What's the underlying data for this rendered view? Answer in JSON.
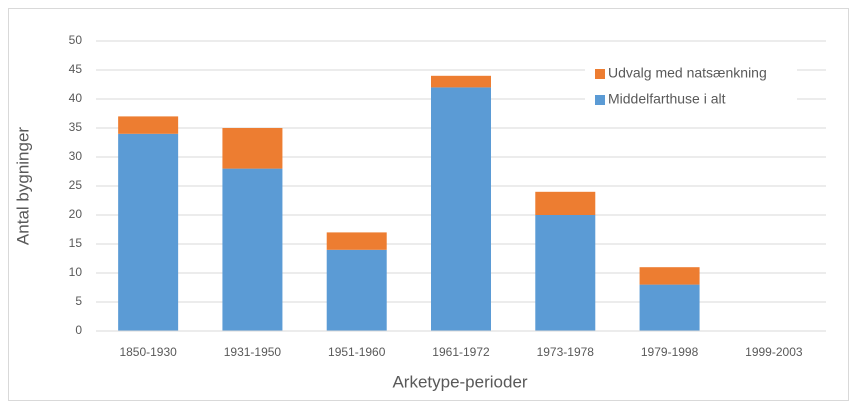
{
  "chart_data": {
    "type": "stacked_bar",
    "x_label": "Arketype-perioder",
    "y_label": "Antal bygninger",
    "categories": [
      "1850-1930",
      "1931-1950",
      "1951-1960",
      "1961-1972",
      "1973-1978",
      "1979-1998",
      "1999-2003"
    ],
    "series": [
      {
        "name": "Middelfarthuse i alt",
        "color": "#5b9bd5",
        "values": [
          34,
          28,
          14,
          42,
          20,
          8,
          0
        ]
      },
      {
        "name": "Udvalg med natsænkning",
        "color": "#ed7d31",
        "values": [
          3,
          7,
          3,
          2,
          4,
          3,
          0
        ]
      }
    ],
    "ylim": [
      0,
      50
    ],
    "yticks": [
      0,
      5,
      10,
      15,
      20,
      25,
      30,
      35,
      40,
      45,
      50
    ],
    "grid": true,
    "legend": "upper right"
  }
}
